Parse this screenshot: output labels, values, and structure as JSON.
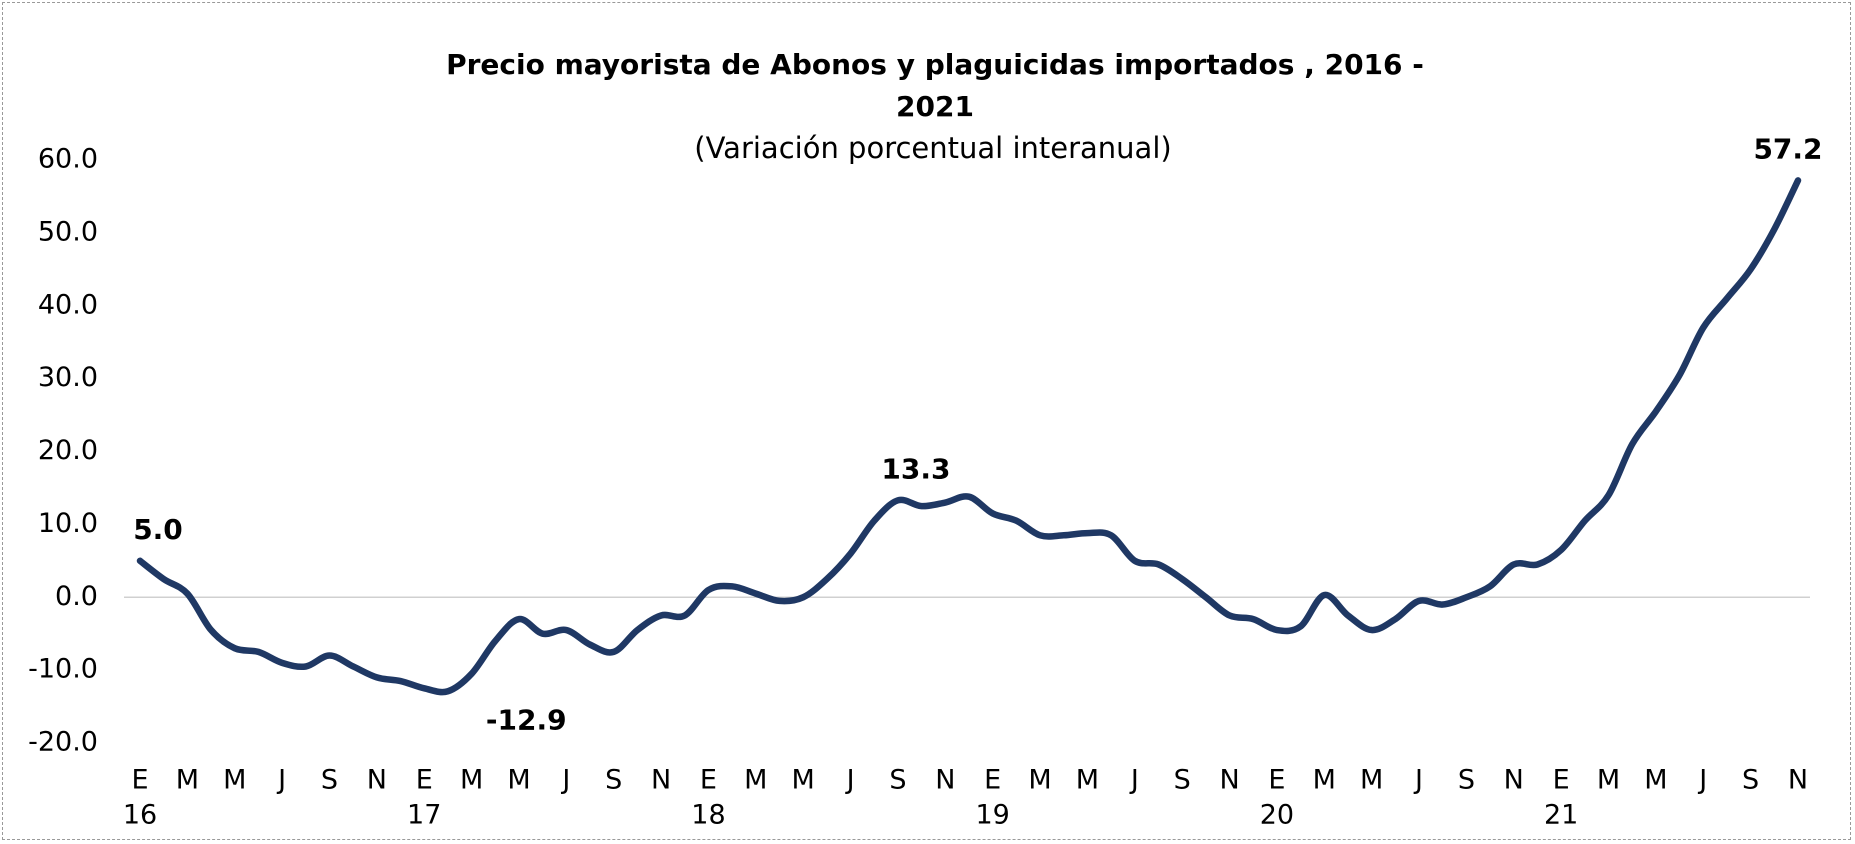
{
  "chart_data": {
    "type": "line",
    "title": "Precio mayorista de Abonos y plaguicidas importados , 2016 - 2021",
    "subtitle": "(Variación porcentual interanual)",
    "categories": [
      "E",
      null,
      "M",
      null,
      "M",
      null,
      "J",
      null,
      "S",
      null,
      "N",
      null,
      "E",
      null,
      "M",
      null,
      "M",
      null,
      "J",
      null,
      "S",
      null,
      "N",
      null,
      "E",
      null,
      "M",
      null,
      "M",
      null,
      "J",
      null,
      "S",
      null,
      "N",
      null,
      "E",
      null,
      "M",
      null,
      "M",
      null,
      "J",
      null,
      "S",
      null,
      "N",
      null,
      "E",
      null,
      "M",
      null,
      "M",
      null,
      "J",
      null,
      "S",
      null,
      "N",
      null,
      "E",
      null,
      "M",
      null,
      "M",
      null,
      "J",
      null,
      "S",
      null,
      "N"
    ],
    "years": [
      "16",
      null,
      null,
      null,
      null,
      null,
      null,
      null,
      null,
      null,
      null,
      null,
      "17",
      null,
      null,
      null,
      null,
      null,
      null,
      null,
      null,
      null,
      null,
      null,
      "18",
      null,
      null,
      null,
      null,
      null,
      null,
      null,
      null,
      null,
      null,
      null,
      "19",
      null,
      null,
      null,
      null,
      null,
      null,
      null,
      null,
      null,
      null,
      null,
      "20",
      null,
      null,
      null,
      null,
      null,
      null,
      null,
      null,
      null,
      null,
      null,
      "21",
      null,
      null,
      null,
      null,
      null,
      null,
      null,
      null,
      null,
      null
    ],
    "series": [
      {
        "color": "#1f3864",
        "values": [
          5.0,
          2.5,
          0.5,
          -4.5,
          -7,
          -7.5,
          -9,
          -9.5,
          -8,
          -9.5,
          -11,
          -11.5,
          -12.5,
          -12.9,
          -10.5,
          -6,
          -3,
          -5,
          -4.5,
          -6.5,
          -7.5,
          -4.5,
          -2.5,
          -2.5,
          1,
          1.5,
          0.5,
          -0.5,
          0,
          2.5,
          6,
          10.5,
          13.3,
          12.5,
          13,
          13.8,
          11.5,
          10.5,
          8.5,
          8.5,
          8.8,
          8.5,
          5,
          4.5,
          2.5,
          0,
          -2.5,
          -3,
          -4.5,
          -4,
          0.3,
          -2.5,
          -4.5,
          -3,
          -0.5,
          -1,
          0,
          1.5,
          4.5,
          4.5,
          6.5,
          10.5,
          14,
          21,
          25.5,
          30.5,
          37,
          41,
          45,
          50.5,
          57.2
        ],
        "value_labels": [
          "5.0",
          null,
          null,
          null,
          null,
          null,
          null,
          null,
          null,
          null,
          null,
          null,
          null,
          "-12.9",
          null,
          null,
          null,
          null,
          null,
          null,
          null,
          null,
          null,
          null,
          null,
          null,
          null,
          null,
          null,
          null,
          null,
          null,
          "13.3",
          null,
          null,
          null,
          null,
          null,
          null,
          null,
          null,
          null,
          null,
          null,
          null,
          null,
          null,
          null,
          null,
          null,
          null,
          null,
          null,
          null,
          null,
          null,
          null,
          null,
          null,
          null,
          null,
          null,
          null,
          null,
          null,
          null,
          null,
          null,
          null,
          null,
          "57.2"
        ]
      }
    ],
    "ylim": [
      -20,
      60
    ],
    "yticks": [
      {
        "value": -20,
        "label": "-20.0"
      },
      {
        "value": -10,
        "label": "-10.0"
      },
      {
        "value": 0,
        "label": "0.0"
      },
      {
        "value": 10,
        "label": "10.0"
      },
      {
        "value": 20,
        "label": "20.0"
      },
      {
        "value": 30,
        "label": "30.0"
      },
      {
        "value": 40,
        "label": "40.0"
      },
      {
        "value": 50,
        "label": "50.0"
      },
      {
        "value": 60,
        "label": "60.0"
      }
    ],
    "zero_line": true
  }
}
